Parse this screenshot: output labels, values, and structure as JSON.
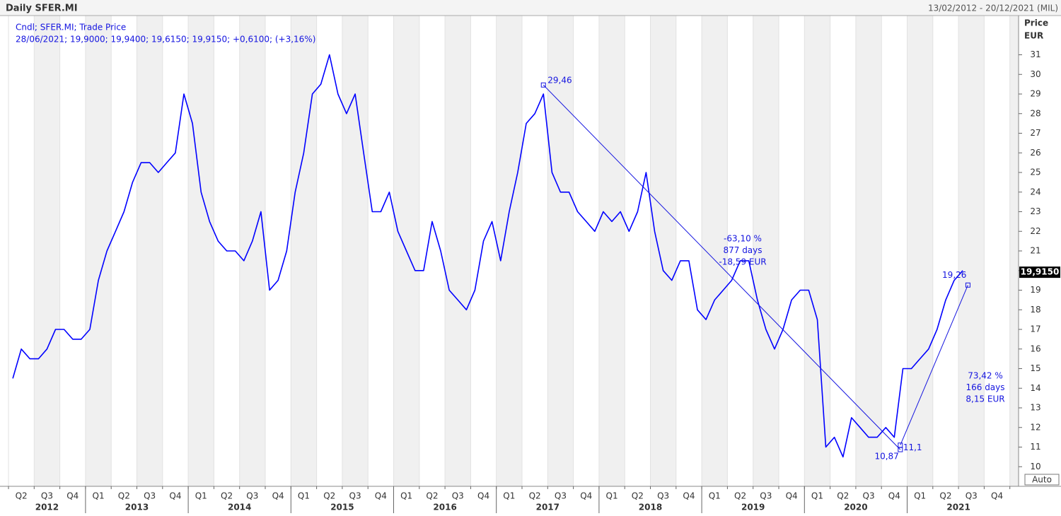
{
  "chart_data": {
    "type": "line",
    "title": "Daily SFER.MI",
    "date_range": "13/02/2012 - 20/12/2021 (MIL)",
    "legend": [
      "Cndl; SFER.MI; Trade Price",
      "28/06/2021; 19,9000; 19,9400; 19,6150; 19,9150; +0,6100; (+3,16%)"
    ],
    "y_axis_label": [
      "Price",
      "EUR"
    ],
    "auto_button": "Auto",
    "categories": [
      null,
      "Q2",
      null,
      null,
      "Q3",
      null,
      null,
      "Q4",
      null,
      null,
      "Q1",
      null,
      null,
      "Q2",
      null,
      null,
      "Q3",
      null,
      null,
      "Q4",
      null,
      null,
      "Q1",
      null,
      null,
      "Q2",
      null,
      null,
      "Q3",
      null,
      null,
      "Q4",
      null,
      null,
      "Q1",
      null,
      null,
      "Q2",
      null,
      null,
      "Q3",
      null,
      null,
      "Q4",
      null,
      null,
      "Q1",
      null,
      null,
      "Q2",
      null,
      null,
      "Q3",
      null,
      null,
      "Q4",
      null,
      null,
      "Q1",
      null,
      null,
      "Q2",
      null,
      null,
      "Q3",
      null,
      null,
      "Q4",
      null,
      null,
      "Q1",
      null,
      null,
      "Q2",
      null,
      null,
      "Q3",
      null,
      null,
      "Q4",
      null,
      null,
      "Q1",
      null,
      null,
      "Q2",
      null,
      null,
      "Q3",
      null,
      null,
      "Q4",
      null,
      null,
      "Q1",
      null,
      null,
      "Q2",
      null,
      null,
      "Q3",
      null,
      null,
      "Q4",
      null,
      null,
      "Q1",
      null,
      null,
      "Q2",
      null,
      null,
      "Q3",
      null,
      null,
      "Q4",
      null
    ],
    "years": [
      "2012",
      "2013",
      "2014",
      "2015",
      "2016",
      "2017",
      "2018",
      "2019",
      "2020",
      "2021"
    ],
    "series": [
      {
        "name": "SFER.MI",
        "color": "#0000ff",
        "values": [
          14.5,
          16,
          15.5,
          15.5,
          16,
          17,
          17,
          16.5,
          16.5,
          17,
          19.5,
          21,
          22,
          23,
          24.5,
          25.5,
          25.5,
          25,
          25.5,
          26,
          29,
          27.5,
          24,
          22.5,
          21.5,
          21,
          21,
          20.5,
          21.5,
          23,
          19,
          19.5,
          21,
          24,
          26,
          29,
          29.5,
          31,
          29,
          28,
          29,
          26,
          23,
          23,
          24,
          22,
          21,
          20,
          20,
          22.5,
          21,
          19,
          18.5,
          18,
          19,
          21.5,
          22.5,
          20.5,
          23,
          25,
          27.5,
          28,
          29,
          25,
          24,
          24,
          23,
          22.5,
          22,
          23,
          22.5,
          23,
          22,
          23,
          25,
          22,
          20,
          19.5,
          20.5,
          20.5,
          18,
          17.5,
          18.5,
          19,
          19.5,
          20.5,
          20.5,
          18.5,
          17,
          16,
          17,
          18.5,
          19,
          19,
          17.5,
          11,
          11.5,
          10.5,
          12.5,
          12,
          11.5,
          11.5,
          12,
          11.5,
          15,
          15,
          15.5,
          16,
          17,
          18.5,
          19.5,
          20,
          null,
          null,
          null,
          null,
          null
        ]
      }
    ],
    "points": [
      {
        "value": 29.46,
        "label": "29,46"
      },
      {
        "value": 10.87,
        "label": "10,87"
      },
      {
        "value": 11.1,
        "label": "11,1"
      },
      {
        "value": 19.26,
        "label": "19,26"
      }
    ],
    "measurements": [
      [
        "-63,10 %",
        "877 days",
        "-18,59 EUR"
      ],
      [
        "73,42 %",
        "166 days",
        "8,15 EUR"
      ]
    ],
    "last_price": {
      "value": 19.915,
      "label": "19,9150"
    },
    "ylim": [
      9,
      33
    ],
    "yticks": [
      10,
      11,
      12,
      13,
      14,
      15,
      16,
      17,
      18,
      19,
      20,
      21,
      22,
      23,
      24,
      25,
      26,
      27,
      28,
      29,
      30,
      31
    ]
  }
}
